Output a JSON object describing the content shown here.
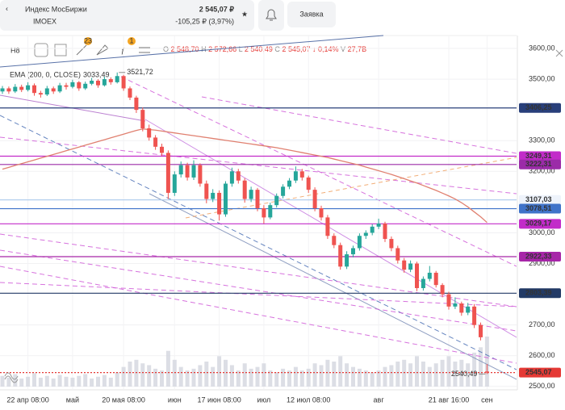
{
  "header": {
    "title": "Индекс МосБиржи",
    "ticker": "IMOEX",
    "price": "2 545,07 ₽",
    "change": "-105,25 ₽ (3,97%)",
    "order_button": "Заявка"
  },
  "toolbar": {
    "interval": "H8",
    "badges": [
      "23",
      "1"
    ],
    "ohlc": [
      {
        "label": "O",
        "value": "2 548,70"
      },
      {
        "label": "H",
        "value": "2 572,66"
      },
      {
        "label": "L",
        "value": "2 540,49"
      },
      {
        "label": "C",
        "value": "2 545,07"
      }
    ],
    "change": "↓ 0,14%",
    "volume": {
      "label": "V",
      "value": "27,7B"
    }
  },
  "indicator": {
    "label": "EMA (200, 0, CLOSE)",
    "value": "3033,49"
  },
  "chart": {
    "type": "candlestick",
    "ylim": [
      2489,
      3642
    ],
    "yticks": [
      {
        "value": 3600,
        "label": "3600,00"
      },
      {
        "value": 3500,
        "label": "3500,00"
      },
      {
        "value": 3300,
        "label": "3300,00"
      },
      {
        "value": 3200,
        "label": "3200,00"
      },
      {
        "value": 3000,
        "label": "3000,00"
      },
      {
        "value": 2900,
        "label": "2900,00"
      },
      {
        "value": 2700,
        "label": "2700,00"
      },
      {
        "value": 2600,
        "label": "2600,00"
      },
      {
        "value": 2500,
        "label": "2500,00"
      }
    ],
    "xticks": [
      {
        "index": 4,
        "label": "22 апр 08:00"
      },
      {
        "index": 11,
        "label": "май"
      },
      {
        "index": 19,
        "label": "20 мая 08:00"
      },
      {
        "index": 27,
        "label": "июн"
      },
      {
        "index": 34,
        "label": "17 июн 08:00"
      },
      {
        "index": 41,
        "label": "июл"
      },
      {
        "index": 48,
        "label": "12 июл 08:00"
      },
      {
        "index": 59,
        "label": "авг"
      },
      {
        "index": 70,
        "label": "21 авг 16:00"
      },
      {
        "index": 76,
        "label": "сен"
      }
    ],
    "up_color": "#26a69a",
    "down_color": "#ef5350",
    "ema_color": "#e08070",
    "volume_color": "#d3d6de",
    "candles": [
      [
        3460,
        3478,
        3452,
        3470
      ],
      [
        3470,
        3476,
        3452,
        3460
      ],
      [
        3460,
        3484,
        3455,
        3475
      ],
      [
        3475,
        3482,
        3458,
        3465
      ],
      [
        3465,
        3490,
        3460,
        3480
      ],
      [
        3480,
        3486,
        3446,
        3455
      ],
      [
        3455,
        3462,
        3440,
        3450
      ],
      [
        3450,
        3478,
        3445,
        3470
      ],
      [
        3470,
        3476,
        3452,
        3460
      ],
      [
        3460,
        3488,
        3455,
        3480
      ],
      [
        3480,
        3488,
        3466,
        3475
      ],
      [
        3475,
        3498,
        3470,
        3490
      ],
      [
        3490,
        3494,
        3462,
        3470
      ],
      [
        3470,
        3492,
        3465,
        3485
      ],
      [
        3485,
        3504,
        3480,
        3495
      ],
      [
        3495,
        3500,
        3472,
        3480
      ],
      [
        3480,
        3508,
        3476,
        3500
      ],
      [
        3500,
        3506,
        3482,
        3490
      ],
      [
        3490,
        3521.72,
        3486,
        3510
      ],
      [
        3510,
        3514,
        3462,
        3470
      ],
      [
        3470,
        3476,
        3432,
        3440
      ],
      [
        3440,
        3446,
        3390,
        3400
      ],
      [
        3400,
        3408,
        3330,
        3340
      ],
      [
        3340,
        3352,
        3300,
        3310
      ],
      [
        3310,
        3318,
        3270,
        3280
      ],
      [
        3280,
        3290,
        3250,
        3260
      ],
      [
        3260,
        3268,
        3110,
        3130
      ],
      [
        3130,
        3200,
        3120,
        3190
      ],
      [
        3190,
        3232,
        3180,
        3220
      ],
      [
        3220,
        3228,
        3170,
        3180
      ],
      [
        3180,
        3236,
        3172,
        3220
      ],
      [
        3220,
        3226,
        3150,
        3160
      ],
      [
        3160,
        3170,
        3096,
        3110
      ],
      [
        3110,
        3142,
        3100,
        3130
      ],
      [
        3130,
        3138,
        3040,
        3060
      ],
      [
        3060,
        3168,
        3052,
        3160
      ],
      [
        3160,
        3212,
        3150,
        3200
      ],
      [
        3200,
        3208,
        3160,
        3170
      ],
      [
        3170,
        3178,
        3098,
        3110
      ],
      [
        3110,
        3150,
        3100,
        3140
      ],
      [
        3140,
        3146,
        3070,
        3080
      ],
      [
        3080,
        3090,
        3030,
        3050
      ],
      [
        3050,
        3098,
        3044,
        3090
      ],
      [
        3090,
        3128,
        3082,
        3120
      ],
      [
        3120,
        3158,
        3112,
        3150
      ],
      [
        3150,
        3178,
        3142,
        3170
      ],
      [
        3170,
        3216,
        3162,
        3200
      ],
      [
        3200,
        3208,
        3170,
        3180
      ],
      [
        3180,
        3186,
        3130,
        3140
      ],
      [
        3140,
        3148,
        3070,
        3080
      ],
      [
        3080,
        3088,
        3040,
        3050
      ],
      [
        3050,
        3058,
        2980,
        2990
      ],
      [
        2990,
        2998,
        2950,
        2960
      ],
      [
        2960,
        2968,
        2880,
        2890
      ],
      [
        2890,
        2940,
        2882,
        2930
      ],
      [
        2930,
        2958,
        2920,
        2950
      ],
      [
        2950,
        2998,
        2942,
        2990
      ],
      [
        2990,
        3008,
        2980,
        3000
      ],
      [
        3000,
        3028,
        2992,
        3020
      ],
      [
        3020,
        3046,
        3012,
        3030
      ],
      [
        3030,
        3036,
        2970,
        2980
      ],
      [
        2980,
        2988,
        2940,
        2950
      ],
      [
        2950,
        2958,
        2900,
        2910
      ],
      [
        2910,
        2918,
        2870,
        2880
      ],
      [
        2880,
        2910,
        2872,
        2900
      ],
      [
        2900,
        2906,
        2810,
        2820
      ],
      [
        2820,
        2858,
        2812,
        2850
      ],
      [
        2850,
        2892,
        2842,
        2870
      ],
      [
        2870,
        2876,
        2822,
        2830
      ],
      [
        2830,
        2836,
        2790,
        2800
      ],
      [
        2800,
        2808,
        2750,
        2760
      ],
      [
        2760,
        2790,
        2752,
        2770
      ],
      [
        2770,
        2776,
        2730,
        2740
      ],
      [
        2740,
        2772,
        2732,
        2760
      ],
      [
        2760,
        2768,
        2690,
        2700
      ],
      [
        2700,
        2708,
        2650,
        2660
      ],
      [
        2548.7,
        2572.66,
        2540.49,
        2545.07
      ]
    ],
    "ema": [
      3207,
      3213,
      3219,
      3225,
      3231,
      3237,
      3243,
      3249,
      3255,
      3261,
      3267,
      3273,
      3279,
      3285,
      3291,
      3297,
      3303,
      3309,
      3315,
      3321,
      3327,
      3333,
      3338,
      3336,
      3334,
      3331,
      3328,
      3325,
      3322,
      3319,
      3316,
      3313,
      3310,
      3307,
      3304,
      3301,
      3298,
      3295,
      3292,
      3289,
      3286,
      3283,
      3280,
      3277,
      3273,
      3269,
      3265,
      3261,
      3257,
      3253,
      3249,
      3245,
      3240,
      3235,
      3230,
      3225,
      3220,
      3214,
      3208,
      3202,
      3196,
      3190,
      3183,
      3176,
      3169,
      3162,
      3154,
      3146,
      3138,
      3129,
      3120,
      3110,
      3098,
      3084,
      3068,
      3052,
      3033.49
    ],
    "volumes": [
      12,
      10,
      14,
      9,
      11,
      15,
      10,
      12,
      9,
      13,
      11,
      10,
      12,
      14,
      9,
      11,
      13,
      10,
      16,
      22,
      28,
      30,
      26,
      24,
      20,
      18,
      40,
      30,
      22,
      18,
      20,
      24,
      28,
      22,
      34,
      30,
      24,
      18,
      26,
      20,
      22,
      26,
      18,
      16,
      20,
      18,
      22,
      18,
      20,
      26,
      24,
      30,
      28,
      34,
      26,
      22,
      20,
      18,
      16,
      18,
      22,
      24,
      28,
      30,
      26,
      34,
      28,
      22,
      26,
      30,
      34,
      28,
      30,
      26,
      38,
      44,
      56
    ],
    "levels": [
      {
        "value": 3406.25,
        "label": "3406,25",
        "color": "#283f7a"
      },
      {
        "value": 3249.31,
        "label": "3249,31",
        "color": "#c22bc9"
      },
      {
        "value": 3222.31,
        "label": "3222,31",
        "color": "#9b2ba8"
      },
      {
        "value": 3107.03,
        "label": "3107,03",
        "color": "#a9c8ec"
      },
      {
        "value": 3078.51,
        "label": "3078,51",
        "color": "#3f73c9"
      },
      {
        "value": 3029.17,
        "label": "3029,17",
        "color": "#c22bc9"
      },
      {
        "value": 2922.33,
        "label": "2922,33",
        "color": "#a726a8"
      },
      {
        "value": 2803.39,
        "label": "2803,39",
        "color": "#223a66"
      },
      {
        "value": 2545.07,
        "label": "2545,07",
        "color": "#e53935"
      }
    ],
    "high_marker": {
      "value": 3521.72,
      "label": "3521,72",
      "index": 18
    },
    "low_marker": {
      "value": 2540.49,
      "label": "2540,49",
      "index": 76
    }
  }
}
